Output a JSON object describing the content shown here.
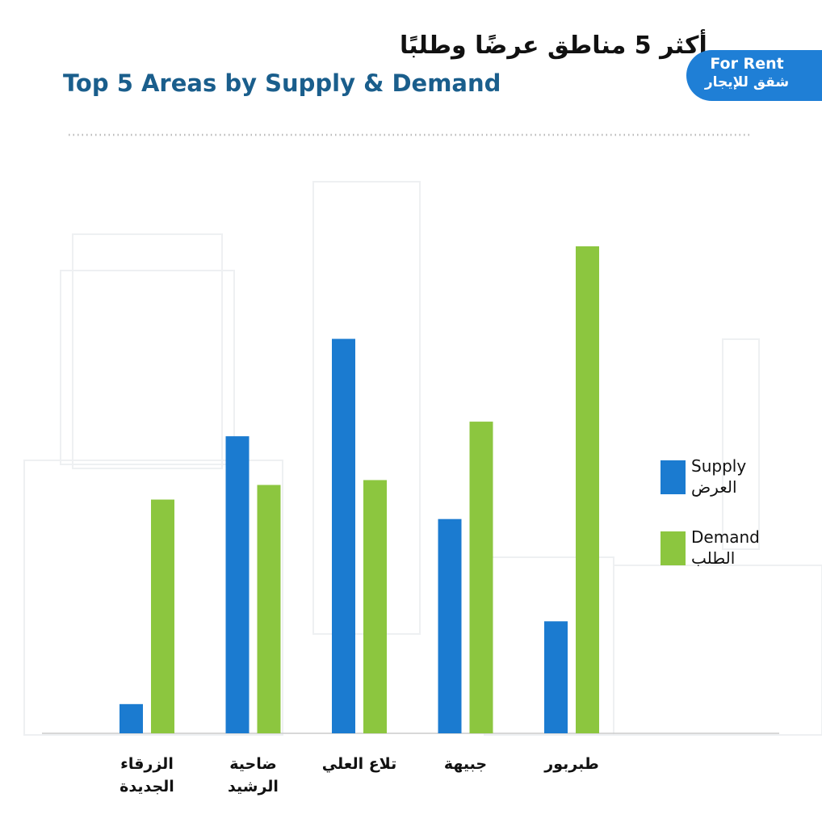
{
  "chart_data": {
    "type": "bar",
    "title": "أكثر 5 مناطق عرضًا وطلبًا",
    "subtitle": "Top 5 Areas by Supply & Demand",
    "annotations": [
      "For Rent",
      "شقق للإيجار"
    ],
    "categories": [
      "الزرقاء الجديدة",
      "ضاحية الرشيد",
      "تلاع العلي",
      "جبيهة",
      "طبربور"
    ],
    "series": [
      {
        "name": "Supply العرض",
        "color": "#1b7bd0",
        "values": [
          6,
          61,
          81,
          44,
          23
        ]
      },
      {
        "name": "Demand الطلب",
        "color": "#8cc63f",
        "values": [
          48,
          51,
          52,
          64,
          100
        ]
      }
    ],
    "legend": "right"
  }
}
